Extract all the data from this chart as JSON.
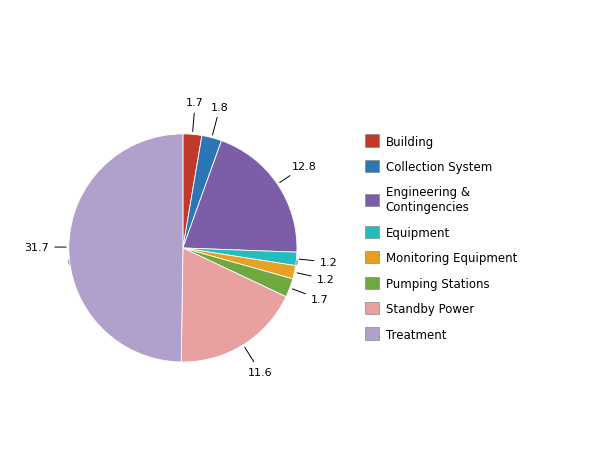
{
  "labels": [
    "Building",
    "Collection System",
    "Engineering & Contingencies",
    "Equipment",
    "Monitoring Equipment",
    "Pumping Stations",
    "Standby Power",
    "Treatment"
  ],
  "values": [
    1.7,
    1.8,
    12.8,
    1.2,
    1.2,
    1.7,
    11.6,
    31.7
  ],
  "colors": [
    "#C0392B",
    "#2E75B6",
    "#7B5EA7",
    "#23BCBF",
    "#E8A020",
    "#70A840",
    "#E8A0A0",
    "#B0A0CC"
  ],
  "shadow_colors": [
    "#9A2F22",
    "#255F91",
    "#614A86",
    "#1C9597",
    "#B87F18",
    "#578530",
    "#C07070",
    "#8A7AAA"
  ],
  "legend_labels": [
    "Building",
    "Collection System",
    "Engineering &\nContingencies",
    "Equipment",
    "Monitoring Equipment",
    "Pumping Stations",
    "Standby Power",
    "Treatment"
  ],
  "label_values": [
    "1.7",
    "1.8",
    "12.8",
    "1.2",
    "1.2",
    "1.7",
    "11.6",
    "31.7"
  ],
  "background_color": "#FFFFFF",
  "startangle": 90,
  "figsize": [
    5.9,
    4.77
  ],
  "dpi": 100
}
